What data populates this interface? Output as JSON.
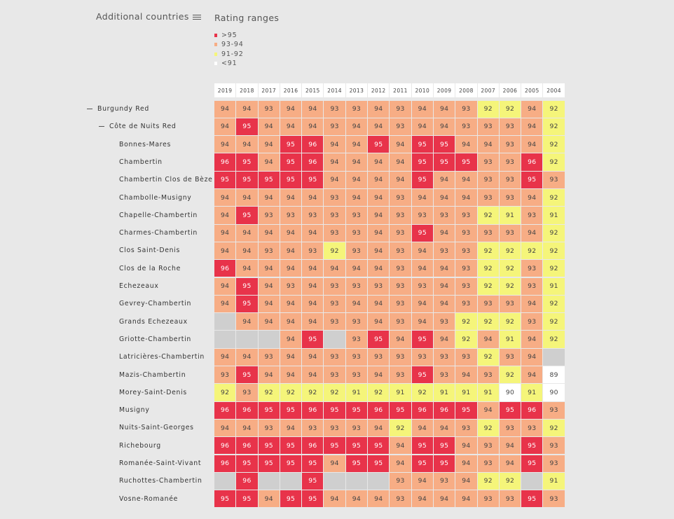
{
  "header": {
    "additional_countries_label": "Additional countries",
    "legend_title": "Rating ranges"
  },
  "legend": [
    {
      "label": ">95",
      "color": "#e8334a"
    },
    {
      "label": "93-94",
      "color": "#f7ad85"
    },
    {
      "label": "91-92",
      "color": "#f5f57a"
    },
    {
      "label": "<91",
      "color": "#ffffff"
    }
  ],
  "chart_data": {
    "type": "heatmap",
    "years": [
      "2019",
      "2018",
      "2017",
      "2016",
      "2015",
      "2014",
      "2013",
      "2012",
      "2011",
      "2010",
      "2009",
      "2008",
      "2007",
      "2006",
      "2005",
      "2004"
    ],
    "rows": [
      {
        "label": "Burgundy Red",
        "level": 0,
        "values": [
          94,
          94,
          93,
          94,
          94,
          93,
          93,
          94,
          93,
          94,
          94,
          93,
          92,
          92,
          94,
          92
        ]
      },
      {
        "label": "Côte de Nuits Red",
        "level": 1,
        "values": [
          94,
          95,
          94,
          94,
          94,
          93,
          94,
          94,
          93,
          94,
          94,
          93,
          93,
          93,
          94,
          92
        ]
      },
      {
        "label": "Bonnes-Mares",
        "level": 2,
        "values": [
          94,
          94,
          94,
          95,
          96,
          94,
          94,
          95,
          94,
          95,
          95,
          94,
          94,
          93,
          94,
          92
        ]
      },
      {
        "label": "Chambertin",
        "level": 2,
        "values": [
          96,
          95,
          94,
          95,
          96,
          94,
          94,
          94,
          94,
          95,
          95,
          95,
          93,
          93,
          96,
          92
        ]
      },
      {
        "label": "Chambertin Clos de Bèze",
        "level": 2,
        "values": [
          95,
          95,
          95,
          95,
          95,
          94,
          94,
          94,
          94,
          95,
          94,
          94,
          93,
          93,
          95,
          93
        ]
      },
      {
        "label": "Chambolle-Musigny",
        "level": 2,
        "values": [
          94,
          94,
          94,
          94,
          94,
          93,
          94,
          94,
          93,
          94,
          94,
          94,
          93,
          93,
          94,
          92
        ]
      },
      {
        "label": "Chapelle-Chambertin",
        "level": 2,
        "values": [
          94,
          95,
          93,
          93,
          93,
          93,
          93,
          94,
          93,
          93,
          93,
          93,
          92,
          91,
          93,
          91
        ]
      },
      {
        "label": "Charmes-Chambertin",
        "level": 2,
        "values": [
          94,
          94,
          94,
          94,
          94,
          93,
          93,
          94,
          93,
          95,
          94,
          93,
          93,
          93,
          94,
          92
        ]
      },
      {
        "label": "Clos Saint-Denis",
        "level": 2,
        "values": [
          94,
          94,
          93,
          94,
          93,
          92,
          93,
          94,
          93,
          94,
          93,
          93,
          92,
          92,
          92,
          92
        ]
      },
      {
        "label": "Clos de la Roche",
        "level": 2,
        "values": [
          96,
          94,
          94,
          94,
          94,
          94,
          94,
          94,
          93,
          94,
          94,
          93,
          92,
          92,
          93,
          92
        ]
      },
      {
        "label": "Echezeaux",
        "level": 2,
        "values": [
          94,
          95,
          94,
          93,
          94,
          93,
          93,
          93,
          93,
          93,
          94,
          93,
          92,
          92,
          93,
          91
        ]
      },
      {
        "label": "Gevrey-Chambertin",
        "level": 2,
        "values": [
          94,
          95,
          94,
          94,
          94,
          93,
          94,
          94,
          93,
          94,
          94,
          93,
          93,
          93,
          94,
          92
        ]
      },
      {
        "label": "Grands Echezeaux",
        "level": 2,
        "values": [
          null,
          94,
          94,
          94,
          94,
          93,
          93,
          94,
          93,
          94,
          93,
          92,
          92,
          92,
          93,
          92
        ]
      },
      {
        "label": "Griotte-Chambertin",
        "level": 2,
        "values": [
          null,
          null,
          null,
          94,
          95,
          null,
          93,
          95,
          94,
          95,
          94,
          92,
          94,
          91,
          94,
          92
        ]
      },
      {
        "label": "Latricières-Chambertin",
        "level": 2,
        "values": [
          94,
          94,
          93,
          94,
          94,
          93,
          93,
          93,
          93,
          93,
          93,
          93,
          92,
          93,
          94,
          null
        ]
      },
      {
        "label": "Mazis-Chambertin",
        "level": 2,
        "values": [
          93,
          95,
          94,
          94,
          94,
          93,
          93,
          94,
          93,
          95,
          93,
          94,
          93,
          92,
          94,
          89
        ]
      },
      {
        "label": "Morey-Saint-Denis",
        "level": 2,
        "values": [
          92,
          93,
          92,
          92,
          92,
          92,
          91,
          92,
          91,
          92,
          91,
          91,
          91,
          90,
          91,
          90
        ]
      },
      {
        "label": "Musigny",
        "level": 2,
        "values": [
          96,
          96,
          95,
          95,
          96,
          95,
          95,
          96,
          95,
          96,
          96,
          95,
          94,
          95,
          96,
          93
        ]
      },
      {
        "label": "Nuits-Saint-Georges",
        "level": 2,
        "values": [
          94,
          94,
          93,
          94,
          93,
          93,
          93,
          94,
          92,
          94,
          94,
          93,
          92,
          93,
          93,
          92
        ]
      },
      {
        "label": "Richebourg",
        "level": 2,
        "values": [
          96,
          96,
          95,
          95,
          96,
          95,
          95,
          95,
          94,
          95,
          95,
          94,
          93,
          94,
          95,
          93
        ]
      },
      {
        "label": "Romanée-Saint-Vivant",
        "level": 2,
        "values": [
          96,
          95,
          95,
          95,
          95,
          94,
          95,
          95,
          94,
          95,
          95,
          94,
          93,
          94,
          95,
          93
        ]
      },
      {
        "label": "Ruchottes-Chambertin",
        "level": 2,
        "values": [
          null,
          96,
          null,
          null,
          95,
          null,
          null,
          null,
          93,
          94,
          93,
          94,
          92,
          92,
          null,
          91
        ]
      },
      {
        "label": "Vosne-Romanée",
        "level": 2,
        "values": [
          95,
          95,
          94,
          95,
          95,
          94,
          94,
          94,
          93,
          94,
          94,
          94,
          93,
          93,
          95,
          93
        ]
      }
    ],
    "color_scale": {
      "high": "#e8334a",
      "mid": "#f7ad85",
      "low": "#f5f57a",
      "lowest": "#ffffff",
      "missing": "#cfcfcf"
    }
  }
}
